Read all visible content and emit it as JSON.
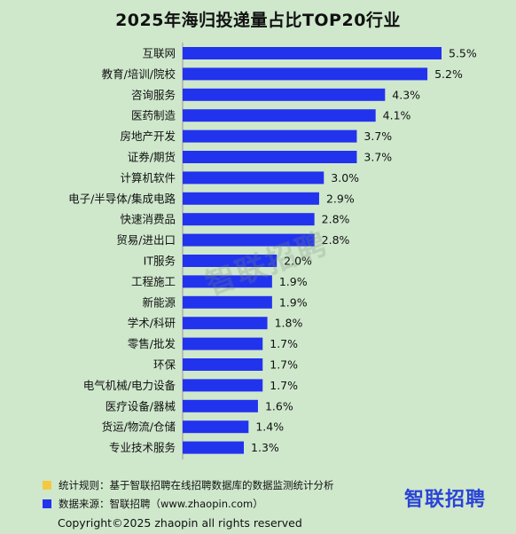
{
  "title": "2025年海归投递量占比TOP20行业",
  "chart_data": {
    "type": "bar",
    "orientation": "horizontal",
    "title": "2025年海归投递量占比TOP20行业",
    "categories": [
      "互联网",
      "教育/培训/院校",
      "咨询服务",
      "医药制造",
      "房地产开发",
      "证券/期货",
      "计算机软件",
      "电子/半导体/集成电路",
      "快速消费品",
      "贸易/进出口",
      "IT服务",
      "工程施工",
      "新能源",
      "学术/科研",
      "零售/批发",
      "环保",
      "电气机械/电力设备",
      "医疗设备/器械",
      "货运/物流/仓储",
      "专业技术服务"
    ],
    "values": [
      5.5,
      5.2,
      4.3,
      4.1,
      3.7,
      3.7,
      3.0,
      2.9,
      2.8,
      2.8,
      2.0,
      1.9,
      1.9,
      1.8,
      1.7,
      1.7,
      1.7,
      1.6,
      1.4,
      1.3
    ],
    "value_labels": [
      "5.5%",
      "5.2%",
      "4.3%",
      "4.1%",
      "3.7%",
      "3.7%",
      "3.0%",
      "2.9%",
      "2.8%",
      "2.8%",
      "2.0%",
      "1.9%",
      "1.9%",
      "1.8%",
      "1.7%",
      "1.7%",
      "1.7%",
      "1.6%",
      "1.4%",
      "1.3%"
    ],
    "unit": "%",
    "xlim": [
      0,
      5.5
    ],
    "bar_color": "#2233ee",
    "grid": false
  },
  "watermark": "智联招聘",
  "notes": {
    "rule": "统计规则：基于智联招聘在线招聘数据库的数据监测统计分析",
    "rule_color": "#f5c842",
    "source": "数据来源：智联招聘（www.zhaopin.com）",
    "source_color": "#2233ee"
  },
  "brand": "智联招聘",
  "copyright": "Copyright©2025 zhaopin all rights reserved"
}
